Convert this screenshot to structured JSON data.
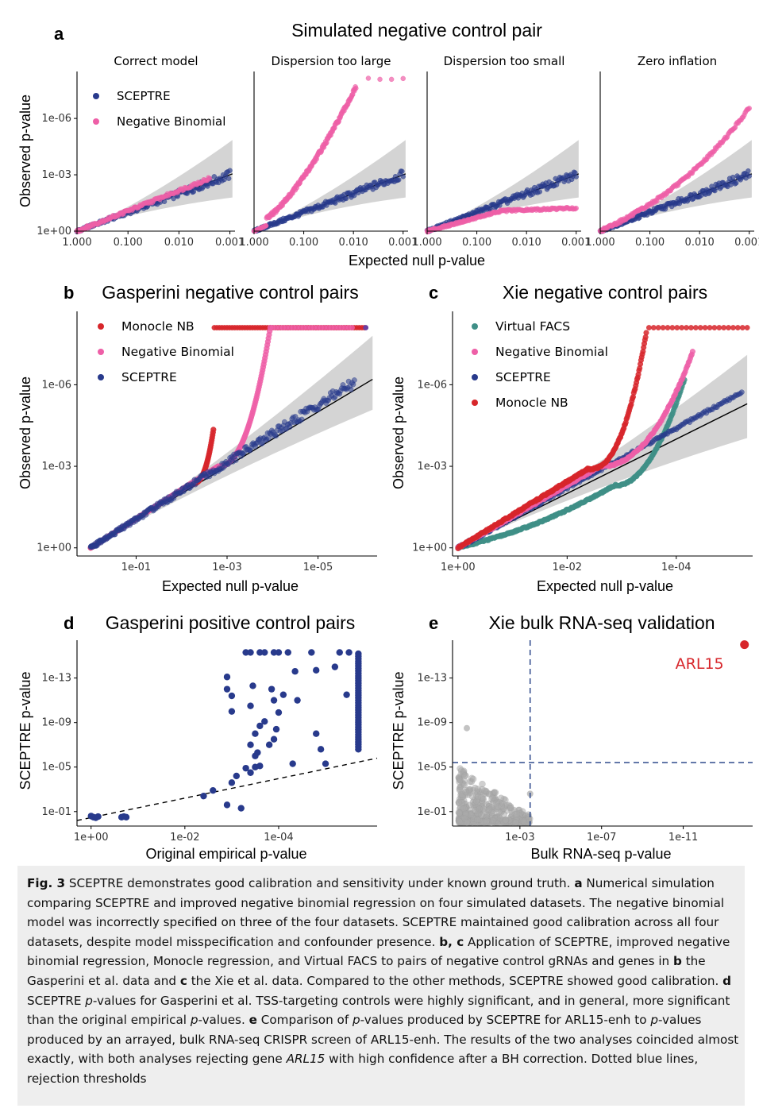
{
  "figure": {
    "panel_a": {
      "letter": "a",
      "title": "Simulated negative control pair",
      "ylabel": "Observed p-value",
      "xlabel": "Expected null p-value",
      "facets": [
        "Correct model",
        "Dispersion too large",
        "Dispersion too small",
        "Zero inflation"
      ],
      "legend": [
        "SCEPTRE",
        "Negative Binomial"
      ]
    },
    "panel_b": {
      "letter": "b",
      "title": "Gasperini negative control pairs",
      "ylabel": "Observed p-value",
      "xlabel": "Expected null p-value",
      "legend": [
        "Monocle NB",
        "Negative Binomial",
        "SCEPTRE"
      ]
    },
    "panel_c": {
      "letter": "c",
      "title": "Xie negative control pairs",
      "ylabel": "Observed p-value",
      "xlabel": "Expected null p-value",
      "legend": [
        "Virtual FACS",
        "Negative Binomial",
        "SCEPTRE",
        "Monocle NB"
      ]
    },
    "panel_d": {
      "letter": "d",
      "title": "Gasperini positive control pairs",
      "ylabel": "SCEPTRE p-value",
      "xlabel": "Original empirical p-value"
    },
    "panel_e": {
      "letter": "e",
      "title": "Xie bulk RNA-seq validation",
      "ylabel": "SCEPTRE p-value",
      "xlabel": "Bulk RNA-seq p-value",
      "annotation": "ARL15"
    }
  },
  "caption": {
    "fig_label": "Fig. 3",
    "intro": "  SCEPTRE demonstrates good calibration and sensitivity under known ground truth. ",
    "a_label": "a",
    "a_text": " Numerical simulation comparing SCEPTRE and improved negative binomial regression on four simulated datasets. The negative binomial model was incorrectly specified on three of the four datasets. SCEPTRE maintained good calibration across all four datasets, despite model misspecification and confounder presence. ",
    "bc_label": "b, c",
    "bc_text1": " Application of SCEPTRE, improved negative binomial regression, Monocle regression, and Virtual FACS to pairs of negative control gRNAs and genes in ",
    "b_label": "b",
    "bc_text2": " the Gasperini et al. data and ",
    "c_label": "c",
    "bc_text3": " the Xie et al. data. Compared to the other methods, SCEPTRE showed good calibration. ",
    "d_label": "d",
    "d_text1": " SCEPTRE ",
    "p_italic": "p",
    "d_text2": "-values for Gasperini et al. TSS-targeting controls were highly significant, and in general, more significant than the original empirical ",
    "d_text3": "-values. ",
    "e_label": "e",
    "e_text1": " Comparison of ",
    "e_text2": "-values produced by SCEPTRE for ARL15-enh to ",
    "e_text3": "-values produced by an arrayed, bulk RNA-seq CRISPR screen of ARL15-enh. The results of the two analyses coincided almost exactly, with both analyses rejecting gene ",
    "gene_italic": "ARL15",
    "e_text4": " with high confidence after a BH correction. Dotted blue lines, rejection thresholds"
  },
  "colors": {
    "sceptre": "#283a8c",
    "negbin": "#ee5fa7",
    "monocle": "#d7262b",
    "virtualfacs": "#3f8f87",
    "grey": "#a9a9a9",
    "band": "#d4d4d4",
    "arl15": "#d7262b"
  },
  "chart_data": [
    {
      "id": "a1",
      "type": "scatter",
      "facet": "Correct model",
      "x_scale": "-log10",
      "y_scale": "-log10",
      "xticks": [
        "1.000",
        "0.100",
        "0.010",
        "0.001"
      ],
      "yticks": [
        "1e+00",
        "1e-03",
        "1e-06"
      ],
      "series": [
        {
          "name": "SCEPTRE",
          "x": [
            1,
            0.01,
            0.003,
            0.001
          ],
          "y": [
            1,
            0.004,
            0.0012,
            0.0006
          ]
        },
        {
          "name": "Negative Binomial",
          "x": [
            1,
            0.01,
            0.005,
            0.003
          ],
          "y": [
            1,
            0.003,
            0.0008,
            0.0004
          ]
        }
      ]
    },
    {
      "id": "a2",
      "type": "scatter",
      "facet": "Dispersion too large",
      "x_scale": "-log10",
      "y_scale": "-log10",
      "xticks": [
        "1.000",
        "0.100",
        "0.010",
        "0.001"
      ],
      "yticks": [
        "1e+00",
        "1e-03",
        "1e-06"
      ],
      "series": [
        {
          "name": "SCEPTRE",
          "x": [
            1,
            0.01,
            0.001
          ],
          "y": [
            1,
            0.008,
            0.0005
          ]
        },
        {
          "name": "Negative Binomial",
          "x": [
            1,
            0.1,
            0.02,
            0.01,
            0.005,
            0.002,
            0.001
          ],
          "y": [
            1,
            0.002,
            1e-05,
            1e-06,
            1e-08,
            1e-08,
            1e-08
          ]
        }
      ]
    },
    {
      "id": "a3",
      "type": "scatter",
      "facet": "Dispersion too small",
      "x_scale": "-log10",
      "y_scale": "-log10",
      "xticks": [
        "1.000",
        "0.100",
        "0.010",
        "0.001"
      ],
      "yticks": [
        "1e+00",
        "1e-03",
        "1e-06"
      ],
      "series": [
        {
          "name": "SCEPTRE",
          "x": [
            1,
            0.01,
            0.001
          ],
          "y": [
            1,
            0.01,
            0.001
          ]
        },
        {
          "name": "Negative Binomial",
          "x": [
            1,
            0.01,
            0.002,
            0.001
          ],
          "y": [
            1,
            0.05,
            0.03,
            0.015
          ]
        }
      ]
    },
    {
      "id": "a4",
      "type": "scatter",
      "facet": "Zero inflation",
      "x_scale": "-log10",
      "y_scale": "-log10",
      "xticks": [
        "1.000",
        "0.100",
        "0.010",
        "0.001"
      ],
      "yticks": [
        "1e+00",
        "1e-03",
        "1e-06"
      ],
      "series": [
        {
          "name": "SCEPTRE",
          "x": [
            1,
            0.01,
            0.001
          ],
          "y": [
            1,
            0.008,
            0.0006
          ]
        },
        {
          "name": "Negative Binomial",
          "x": [
            1,
            0.02,
            0.005,
            0.002,
            0.001
          ],
          "y": [
            1,
            0.002,
            5e-05,
            1e-05,
            5e-06
          ]
        }
      ]
    },
    {
      "id": "b",
      "type": "scatter",
      "title": "Gasperini negative control pairs",
      "x_scale": "-log10",
      "y_scale": "-log10",
      "xticks": [
        "1e-01",
        "1e-03",
        "1e-05"
      ],
      "yticks": [
        "1e+00",
        "1e-03",
        "1e-06"
      ],
      "series": [
        {
          "name": "Monocle NB",
          "x": [
            1,
            0.003,
            0.001,
            1e-06
          ],
          "y": [
            1,
            0.0003,
            1e-08,
            1e-08
          ]
        },
        {
          "name": "Negative Binomial",
          "x": [
            1,
            0.001,
            0.0001,
            1e-06
          ],
          "y": [
            1,
            0.0008,
            1e-08,
            1e-08
          ]
        },
        {
          "name": "SCEPTRE",
          "x": [
            1,
            1e-05,
            1e-06
          ],
          "y": [
            1,
            2e-06,
            2e-07
          ]
        }
      ]
    },
    {
      "id": "c",
      "type": "scatter",
      "title": "Xie negative control pairs",
      "x_scale": "-log10",
      "y_scale": "-log10",
      "xticks": [
        "1e+00",
        "1e-02",
        "1e-04"
      ],
      "yticks": [
        "1e+00",
        "1e-03",
        "1e-06"
      ],
      "series": [
        {
          "name": "Virtual FACS",
          "x": [
            1,
            0.01,
            0.001,
            0.0001
          ],
          "y": [
            1,
            0.01,
            0.0008,
            1e-05
          ]
        },
        {
          "name": "Negative Binomial",
          "x": [
            1,
            0.001,
            0.0001,
            5e-05
          ],
          "y": [
            1,
            0.0001,
            1e-06,
            1e-07
          ]
        },
        {
          "name": "SCEPTRE",
          "x": [
            1,
            0.001,
            1e-05
          ],
          "y": [
            1,
            0.0005,
            1e-06
          ]
        },
        {
          "name": "Monocle NB",
          "x": [
            1,
            0.001,
            0.0002,
            1e-05
          ],
          "y": [
            1,
            0.0001,
            1e-08,
            1e-08
          ]
        }
      ]
    },
    {
      "id": "d",
      "type": "scatter",
      "title": "Gasperini positive control pairs",
      "x_scale": "-log10",
      "y_scale": "-log10",
      "xticks": [
        "1e+00",
        "1e-02",
        "1e-04"
      ],
      "yticks": [
        "1e-01",
        "1e-05",
        "1e-09",
        "1e-13"
      ],
      "series": [
        {
          "name": "SCEPTRE",
          "x": [
            1,
            0.9,
            0.7,
            0.25,
            0.22,
            0.004,
            0.003,
            0.001,
            0.0008,
            0.0006,
            0.0005,
            0.0002,
            2e-05,
            1e-06
          ],
          "y": [
            0.2,
            0.2,
            0.18,
            0.2,
            0.18,
            0.001,
            0.003,
            1e-05,
            1e-06,
            1e-07,
            1e-12,
            1e-16,
            1e-15,
            1e-14
          ]
        }
      ],
      "reference_line": "y = x (dashed)"
    },
    {
      "id": "e",
      "type": "scatter",
      "title": "Xie bulk RNA-seq validation",
      "x_scale": "-log10",
      "y_scale": "-log10",
      "xticks": [
        "1e-03",
        "1e-07",
        "1e-11"
      ],
      "yticks": [
        "1e-01",
        "1e-05",
        "1e-09",
        "1e-13"
      ],
      "series": [
        {
          "name": "ARL15",
          "x": [
            1e-14
          ],
          "y": [
            1e-16
          ]
        }
      ],
      "thresholds": {
        "x": 0.0003,
        "y": 4e-06
      }
    }
  ]
}
